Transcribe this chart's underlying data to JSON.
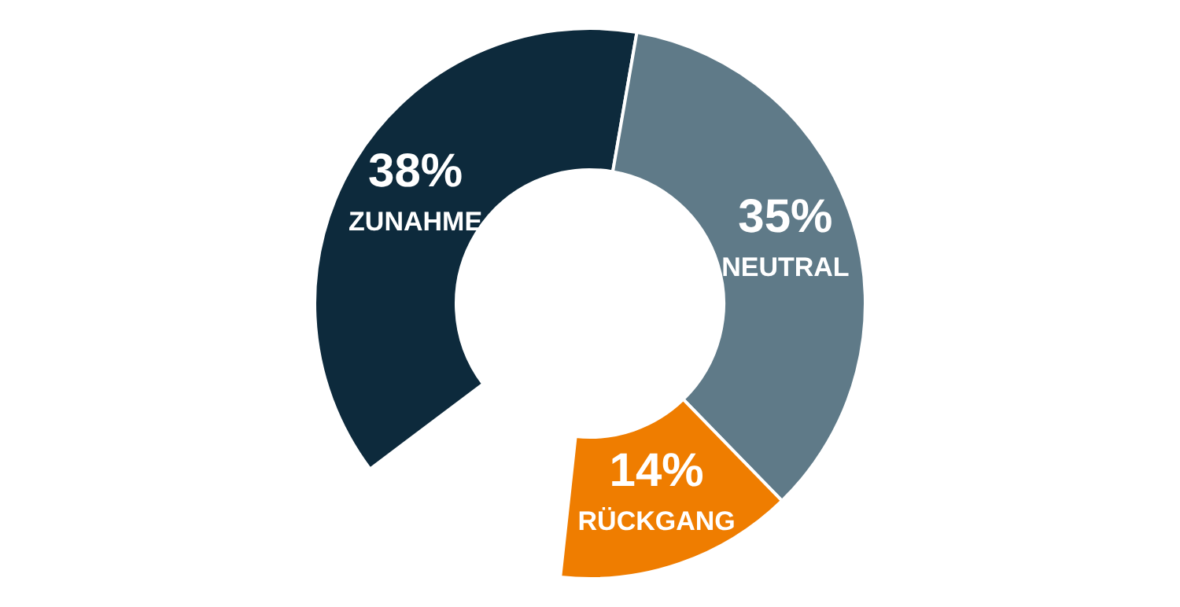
{
  "chart_data": {
    "type": "donut",
    "categories": [
      "ZUNAHME",
      "NEUTRAL",
      "RÜCKGANG"
    ],
    "values": [
      38,
      35,
      14
    ],
    "colors": [
      "#0d2a3c",
      "#5f7a88",
      "#ef7d00"
    ],
    "value_labels": [
      "38%",
      "35%",
      "14%"
    ]
  }
}
